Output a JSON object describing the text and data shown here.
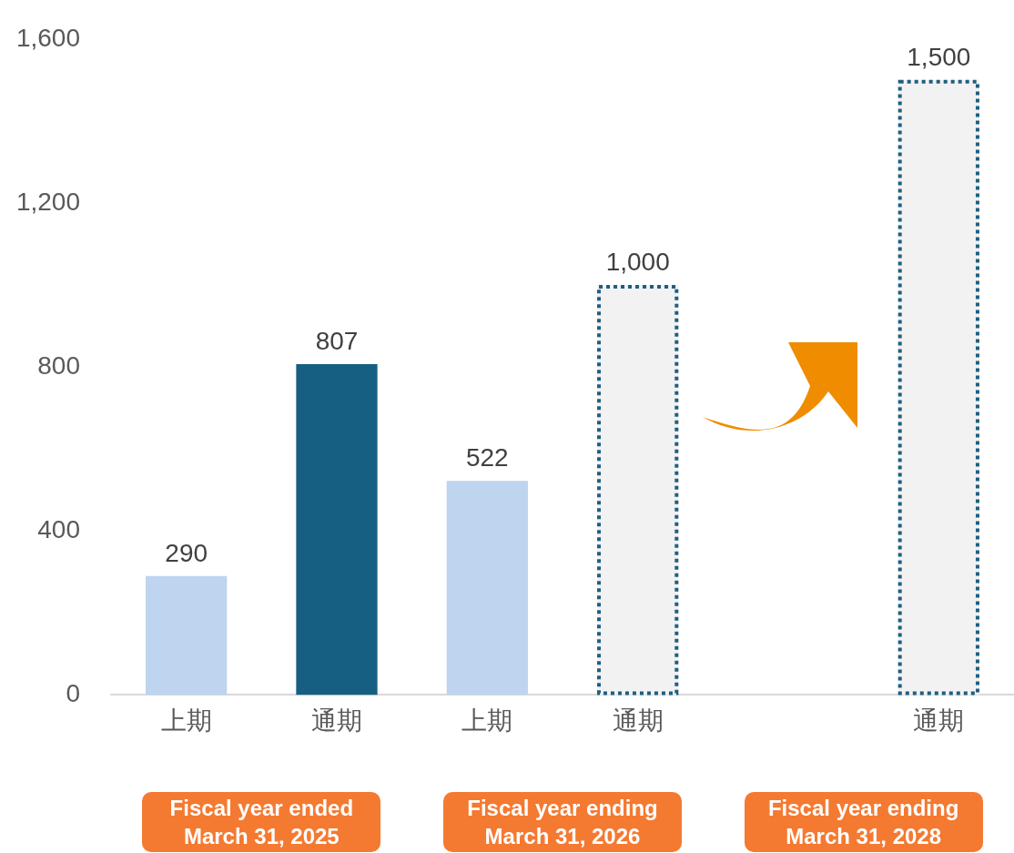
{
  "chart_data": {
    "type": "bar",
    "categories": [
      "上期",
      "通期",
      "上期",
      "通期",
      null,
      "通期"
    ],
    "series": [
      {
        "colors": [
          "#bfd4ee",
          "#175f82",
          "#bfd4ee",
          null,
          null,
          null
        ],
        "values": [
          290,
          807,
          522,
          null,
          null,
          null
        ],
        "value_labels": [
          "290",
          "807",
          "522",
          null,
          null,
          null
        ]
      },
      {
        "color": "#1f5f82",
        "line_style": "dotted",
        "values": [
          null,
          null,
          null,
          1000,
          null,
          1500
        ],
        "value_labels": [
          null,
          null,
          null,
          "1,000",
          null,
          "1,500"
        ]
      }
    ],
    "ylim": [
      0,
      1600
    ],
    "yticks": [
      {
        "value": 0,
        "label": "0"
      },
      {
        "value": 400,
        "label": "400"
      },
      {
        "value": 800,
        "label": "800"
      },
      {
        "value": 1200,
        "label": "1,200"
      },
      {
        "value": 1600,
        "label": "1,600"
      }
    ],
    "grid": false,
    "legend": false,
    "annotations": [
      "Fiscal year ended\nMarch 31, 2025",
      "Fiscal year ending\nMarch 31, 2026",
      "Fiscal year ending\nMarch 31, 2028"
    ]
  }
}
